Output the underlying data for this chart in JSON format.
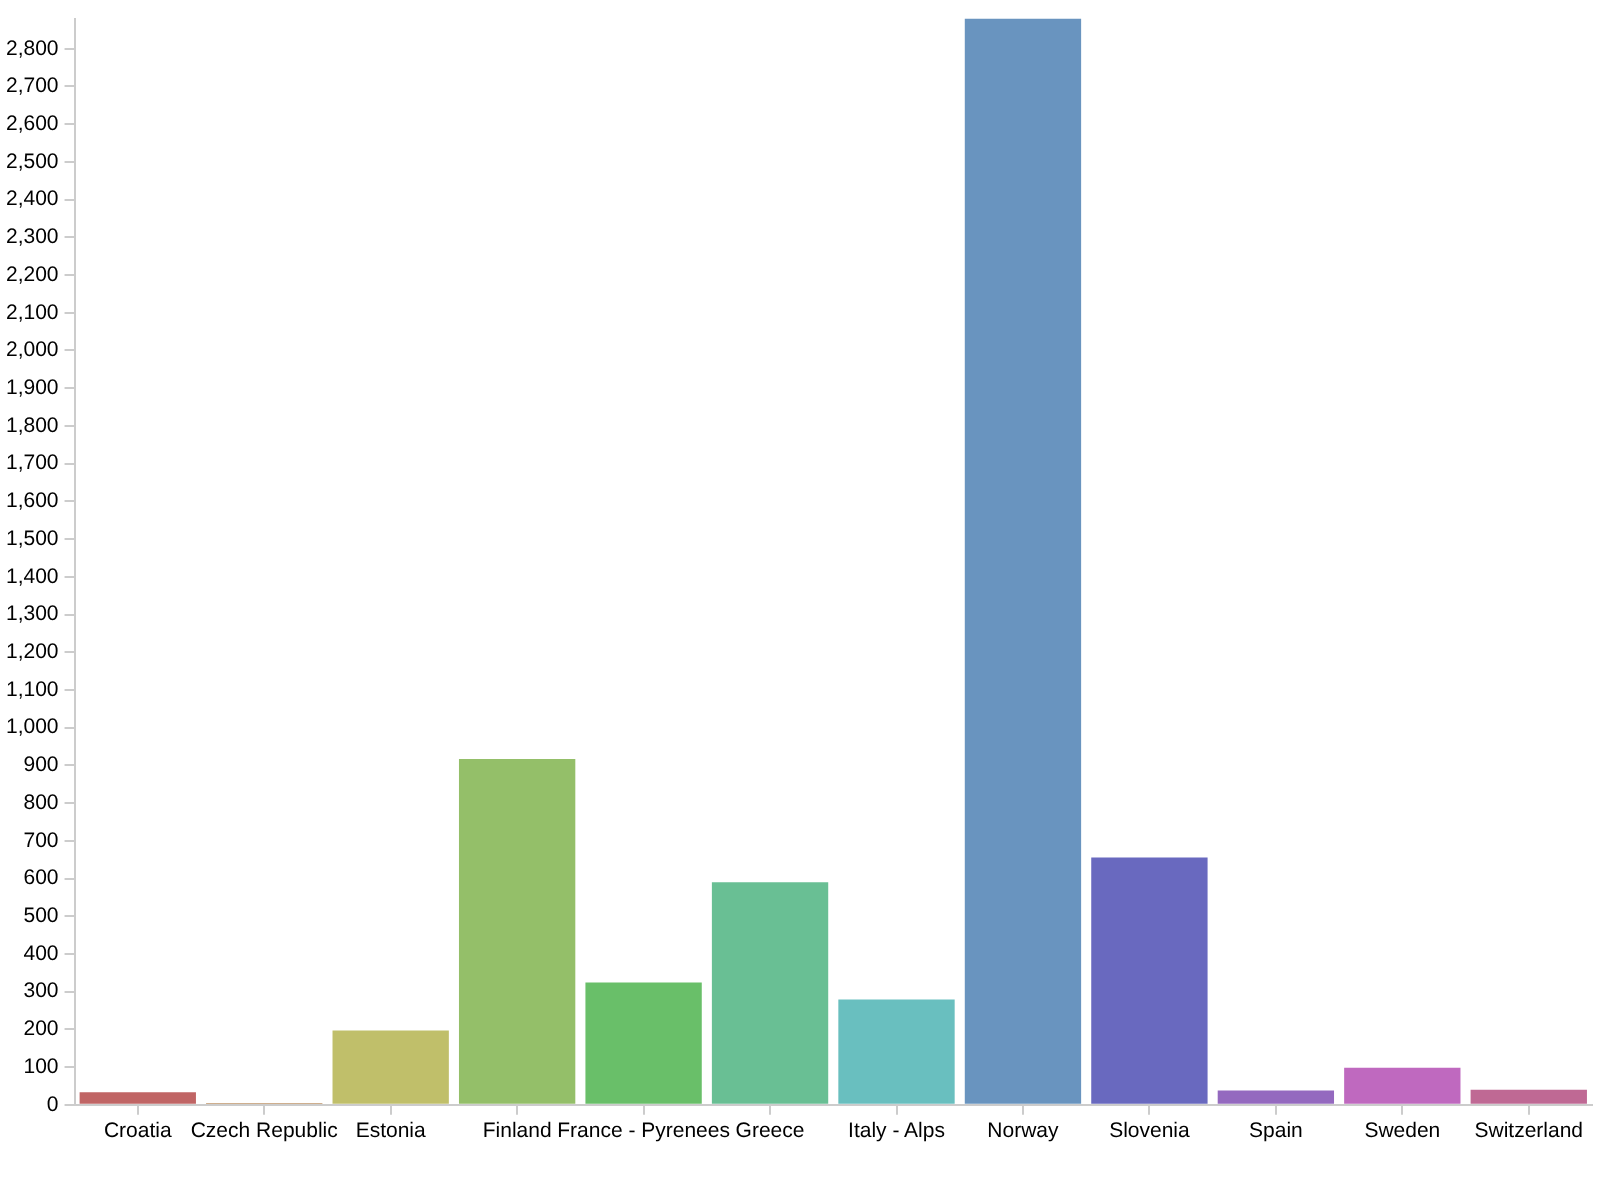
{
  "chart_data": {
    "type": "bar",
    "categories": [
      "Croatia",
      "Czech Republic",
      "Estonia",
      "Finland",
      "France - Pyrenees",
      "Greece",
      "Italy - Alps",
      "Norway",
      "Slovenia",
      "Spain",
      "Sweden",
      "Switzerland"
    ],
    "values": [
      33,
      5,
      197,
      917,
      324,
      590,
      279,
      2880,
      656,
      38,
      98,
      40
    ],
    "colors": [
      "#c06565",
      "#bf9469",
      "#c0bf6a",
      "#94bf69",
      "#69bf69",
      "#69bf94",
      "#69bfbf",
      "#6994bf",
      "#6969bf",
      "#9469bf",
      "#bf69bf",
      "#bf6994"
    ],
    "ylim": [
      0,
      2880
    ],
    "yticks": [
      {
        "value": 0,
        "label": "0"
      },
      {
        "value": 100,
        "label": "100"
      },
      {
        "value": 200,
        "label": "200"
      },
      {
        "value": 300,
        "label": "300"
      },
      {
        "value": 400,
        "label": "400"
      },
      {
        "value": 500,
        "label": "500"
      },
      {
        "value": 600,
        "label": "600"
      },
      {
        "value": 700,
        "label": "700"
      },
      {
        "value": 800,
        "label": "800"
      },
      {
        "value": 900,
        "label": "900"
      },
      {
        "value": 1000,
        "label": "1,000"
      },
      {
        "value": 1100,
        "label": "1,100"
      },
      {
        "value": 1200,
        "label": "1,200"
      },
      {
        "value": 1300,
        "label": "1,300"
      },
      {
        "value": 1400,
        "label": "1,400"
      },
      {
        "value": 1500,
        "label": "1,500"
      },
      {
        "value": 1600,
        "label": "1,600"
      },
      {
        "value": 1700,
        "label": "1,700"
      },
      {
        "value": 1800,
        "label": "1,800"
      },
      {
        "value": 1900,
        "label": "1,900"
      },
      {
        "value": 2000,
        "label": "2,000"
      },
      {
        "value": 2100,
        "label": "2,100"
      },
      {
        "value": 2200,
        "label": "2,200"
      },
      {
        "value": 2300,
        "label": "2,300"
      },
      {
        "value": 2400,
        "label": "2,400"
      },
      {
        "value": 2500,
        "label": "2,500"
      },
      {
        "value": 2600,
        "label": "2,600"
      },
      {
        "value": 2700,
        "label": "2,700"
      },
      {
        "value": 2800,
        "label": "2,800"
      }
    ],
    "grid": false,
    "legend": false
  }
}
